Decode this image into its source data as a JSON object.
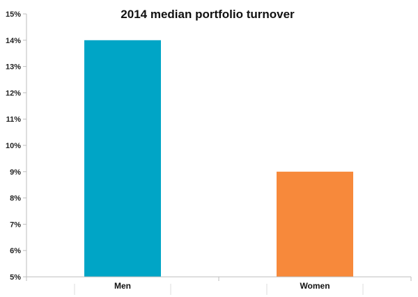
{
  "chart_data": {
    "type": "bar",
    "title": "2014 median portfolio turnover",
    "xlabel": "",
    "ylabel": "",
    "categories": [
      "Men",
      "Women"
    ],
    "values": [
      14,
      9
    ],
    "bar_colors": [
      "#00A5C6",
      "#F7893B"
    ],
    "ylim": [
      5,
      15
    ],
    "yticks": [
      5,
      6,
      7,
      8,
      9,
      10,
      11,
      12,
      13,
      14,
      15
    ],
    "ytick_labels": [
      "5%",
      "6%",
      "7%",
      "8%",
      "9%",
      "10%",
      "11%",
      "12%",
      "13%",
      "14%",
      "15%"
    ],
    "grid": false,
    "legend": "none"
  }
}
